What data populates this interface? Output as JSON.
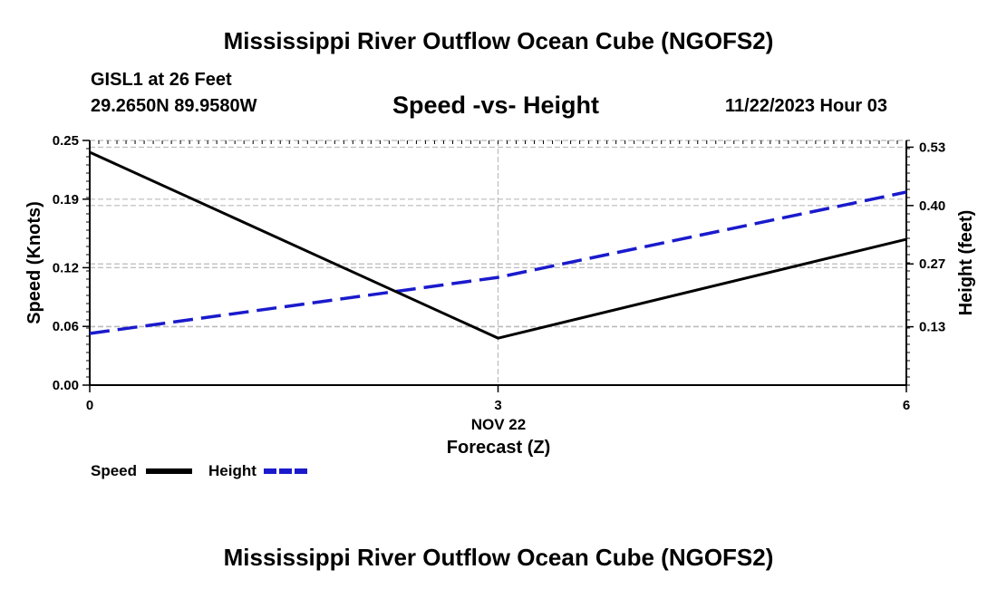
{
  "header": {
    "title": "Mississippi River Outflow Ocean Cube (NGOFS2)",
    "station": "GISL1 at 26 Feet",
    "coordinates": "29.2650N  89.9580W",
    "datetime": "11/22/2023 Hour 03"
  },
  "footer": {
    "title": "Mississippi River Outflow Ocean Cube (NGOFS2)"
  },
  "colors": {
    "speed": "#000000",
    "height": "#1a1acc",
    "grid": "#bbbbbb"
  },
  "chart_data": {
    "type": "line",
    "title": "Speed -vs- Height",
    "xlabel": "Forecast (Z)",
    "x_date_label": "NOV 22",
    "x": [
      0,
      3,
      6
    ],
    "x_ticks": [
      0,
      3,
      6
    ],
    "x_tick_labels": [
      "0",
      "3",
      "6"
    ],
    "xlim": [
      0,
      6
    ],
    "ylabel_left": "Speed (Knots)",
    "ylim_left": [
      0,
      0.25
    ],
    "y_ticks_left": [
      0.0,
      0.06,
      0.12,
      0.19,
      0.25
    ],
    "y_tick_labels_left": [
      "0.00",
      "0.06",
      "0.12",
      "0.19",
      "0.25"
    ],
    "ylabel_right": "Height (feet)",
    "ylim_right": [
      0,
      0.545
    ],
    "y_ticks_right": [
      0.13,
      0.27,
      0.4,
      0.53
    ],
    "y_tick_labels_right": [
      "0.13",
      "0.27",
      "0.40",
      "0.53"
    ],
    "series": [
      {
        "name": "Speed",
        "axis": "left",
        "style": "solid",
        "values": [
          0.238,
          0.048,
          0.149
        ]
      },
      {
        "name": "Height",
        "axis": "right",
        "style": "dashed",
        "values": [
          0.115,
          0.24,
          0.43
        ]
      }
    ],
    "legend": [
      "Speed",
      "Height"
    ],
    "legend_position": "bottom-left",
    "grid": true
  }
}
